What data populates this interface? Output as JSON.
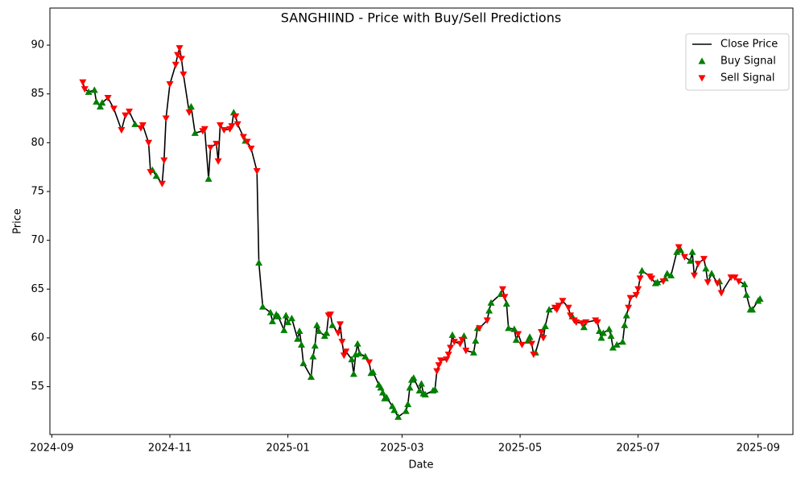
{
  "chart_data": {
    "type": "line",
    "title": "SANGHIIND - Price with Buy/Sell Predictions",
    "x_label": "Date",
    "y_label": "Price",
    "xlim": [
      "2024-08-31",
      "2025-09-19"
    ],
    "xticks": [
      {
        "value": "2024-09-01",
        "label": "2024-09"
      },
      {
        "value": "2024-11-01",
        "label": "2024-11"
      },
      {
        "value": "2025-01-01",
        "label": "2025-01"
      },
      {
        "value": "2025-03-01",
        "label": "2025-03"
      },
      {
        "value": "2025-05-01",
        "label": "2025-05"
      },
      {
        "value": "2025-07-01",
        "label": "2025-07"
      },
      {
        "value": "2025-09-01",
        "label": "2025-09"
      }
    ],
    "ylim": [
      50.1,
      93.8
    ],
    "yticks": [
      55,
      60,
      65,
      70,
      75,
      80,
      85,
      90
    ],
    "grid": false,
    "legend": "upper right",
    "x": [
      "2024-09-17",
      "2024-09-18",
      "2024-09-20",
      "2024-09-23",
      "2024-09-24",
      "2024-09-26",
      "2024-09-27",
      "2024-09-30",
      "2024-10-03",
      "2024-10-07",
      "2024-10-09",
      "2024-10-11",
      "2024-10-14",
      "2024-10-17",
      "2024-10-18",
      "2024-10-21",
      "2024-10-22",
      "2024-10-23",
      "2024-10-25",
      "2024-10-28",
      "2024-10-29",
      "2024-10-30",
      "2024-11-01",
      "2024-11-04",
      "2024-11-05",
      "2024-11-06",
      "2024-11-07",
      "2024-11-08",
      "2024-11-11",
      "2024-11-12",
      "2024-11-14",
      "2024-11-18",
      "2024-11-19",
      "2024-11-21",
      "2024-11-22",
      "2024-11-25",
      "2024-11-26",
      "2024-11-27",
      "2024-11-29",
      "2024-12-02",
      "2024-12-03",
      "2024-12-04",
      "2024-12-05",
      "2024-12-06",
      "2024-12-09",
      "2024-12-10",
      "2024-12-11",
      "2024-12-13",
      "2024-12-16",
      "2024-12-17",
      "2024-12-19",
      "2024-12-23",
      "2024-12-24",
      "2024-12-26",
      "2024-12-27",
      "2024-12-30",
      "2024-12-31",
      "2025-01-01",
      "2025-01-03",
      "2025-01-06",
      "2025-01-07",
      "2025-01-08",
      "2025-01-09",
      "2025-01-13",
      "2025-01-14",
      "2025-01-15",
      "2025-01-16",
      "2025-01-17",
      "2025-01-20",
      "2025-01-21",
      "2025-01-22",
      "2025-01-23",
      "2025-01-24",
      "2025-01-27",
      "2025-01-28",
      "2025-01-29",
      "2025-01-30",
      "2025-01-31",
      "2025-02-03",
      "2025-02-04",
      "2025-02-05",
      "2025-02-06",
      "2025-02-07",
      "2025-02-10",
      "2025-02-12",
      "2025-02-13",
      "2025-02-14",
      "2025-02-17",
      "2025-02-18",
      "2025-02-19",
      "2025-02-20",
      "2025-02-21",
      "2025-02-24",
      "2025-02-25",
      "2025-02-27",
      "2025-03-03",
      "2025-03-04",
      "2025-03-05",
      "2025-03-06",
      "2025-03-07",
      "2025-03-10",
      "2025-03-11",
      "2025-03-12",
      "2025-03-13",
      "2025-03-17",
      "2025-03-18",
      "2025-03-19",
      "2025-03-20",
      "2025-03-21",
      "2025-03-24",
      "2025-03-25",
      "2025-03-26",
      "2025-03-27",
      "2025-03-28",
      "2025-03-31",
      "2025-04-01",
      "2025-04-02",
      "2025-04-03",
      "2025-04-07",
      "2025-04-08",
      "2025-04-09",
      "2025-04-10",
      "2025-04-14",
      "2025-04-15",
      "2025-04-16",
      "2025-04-21",
      "2025-04-22",
      "2025-04-23",
      "2025-04-24",
      "2025-04-25",
      "2025-04-28",
      "2025-04-29",
      "2025-04-30",
      "2025-05-02",
      "2025-05-05",
      "2025-05-06",
      "2025-05-07",
      "2025-05-08",
      "2025-05-09",
      "2025-05-12",
      "2025-05-13",
      "2025-05-14",
      "2025-05-16",
      "2025-05-19",
      "2025-05-20",
      "2025-05-21",
      "2025-05-23",
      "2025-05-26",
      "2025-05-27",
      "2025-05-28",
      "2025-05-29",
      "2025-05-30",
      "2025-06-02",
      "2025-06-03",
      "2025-06-04",
      "2025-06-09",
      "2025-06-10",
      "2025-06-11",
      "2025-06-12",
      "2025-06-13",
      "2025-06-16",
      "2025-06-17",
      "2025-06-18",
      "2025-06-20",
      "2025-06-23",
      "2025-06-24",
      "2025-06-25",
      "2025-06-26",
      "2025-06-27",
      "2025-06-30",
      "2025-07-01",
      "2025-07-02",
      "2025-07-03",
      "2025-07-07",
      "2025-07-08",
      "2025-07-10",
      "2025-07-11",
      "2025-07-14",
      "2025-07-15",
      "2025-07-16",
      "2025-07-18",
      "2025-07-21",
      "2025-07-22",
      "2025-07-23",
      "2025-07-25",
      "2025-07-28",
      "2025-07-29",
      "2025-07-30",
      "2025-08-01",
      "2025-08-04",
      "2025-08-05",
      "2025-08-06",
      "2025-08-08",
      "2025-08-11",
      "2025-08-12",
      "2025-08-13",
      "2025-08-18",
      "2025-08-20",
      "2025-08-22",
      "2025-08-25",
      "2025-08-26",
      "2025-08-28",
      "2025-08-29",
      "2025-09-01",
      "2025-09-02"
    ],
    "series": [
      {
        "name": "Close Price",
        "type": "line",
        "color": "#000000",
        "values": [
          86.2,
          85.5,
          85.2,
          85.4,
          84.2,
          83.7,
          84.1,
          84.6,
          83.5,
          81.3,
          82.8,
          83.2,
          81.9,
          81.5,
          81.8,
          80.0,
          77.0,
          77.2,
          76.6,
          75.8,
          78.2,
          82.5,
          86.0,
          88.0,
          89.0,
          89.7,
          88.6,
          87.0,
          83.1,
          83.7,
          81.0,
          81.2,
          81.4,
          76.3,
          79.5,
          79.9,
          78.1,
          81.8,
          81.3,
          81.4,
          81.7,
          83.1,
          82.7,
          81.9,
          80.6,
          80.2,
          80.1,
          79.4,
          77.1,
          67.7,
          63.2,
          62.6,
          61.7,
          62.4,
          62.2,
          60.8,
          62.3,
          61.6,
          62.0,
          59.9,
          60.7,
          59.3,
          57.4,
          56.0,
          58.1,
          59.2,
          61.3,
          60.7,
          60.2,
          60.5,
          62.3,
          62.4,
          61.3,
          60.5,
          61.4,
          59.6,
          58.2,
          58.6,
          57.8,
          56.3,
          58.3,
          59.4,
          58.4,
          58.1,
          57.5,
          56.4,
          56.5,
          55.2,
          54.9,
          54.4,
          53.8,
          53.9,
          53.0,
          52.6,
          51.9,
          52.5,
          53.2,
          54.9,
          55.7,
          55.9,
          54.6,
          55.3,
          54.3,
          54.2,
          54.6,
          54.7,
          56.6,
          57.2,
          57.7,
          57.8,
          58.3,
          59.0,
          60.3,
          59.6,
          59.4,
          59.8,
          60.2,
          58.7,
          58.5,
          59.7,
          61.0,
          61.0,
          61.8,
          62.8,
          63.6,
          64.5,
          65.0,
          64.2,
          63.5,
          61.0,
          60.9,
          59.8,
          60.4,
          59.3,
          59.7,
          60.1,
          59.4,
          58.3,
          58.5,
          60.6,
          60.0,
          61.2,
          62.9,
          63.1,
          62.9,
          63.3,
          63.8,
          63.1,
          62.3,
          62.2,
          61.8,
          61.6,
          61.5,
          61.1,
          61.6,
          61.8,
          61.6,
          60.7,
          60.0,
          60.5,
          60.9,
          60.2,
          59.0,
          59.3,
          59.6,
          61.3,
          62.3,
          63.1,
          64.1,
          64.4,
          65.0,
          66.1,
          66.9,
          66.3,
          66.1,
          65.6,
          65.7,
          65.8,
          66.1,
          66.6,
          66.4,
          68.8,
          69.3,
          69.0,
          68.3,
          67.9,
          68.8,
          66.4,
          67.6,
          68.1,
          67.1,
          65.7,
          66.6,
          65.6,
          65.8,
          64.6,
          66.2,
          66.2,
          65.8,
          65.5,
          64.4,
          62.9,
          62.9,
          63.8,
          64.0
        ]
      },
      {
        "name": "Buy Signal",
        "type": "scatter",
        "marker": "triangle-up",
        "color": "#008000",
        "values": [
          null,
          null,
          85.2,
          85.4,
          84.2,
          83.7,
          84.1,
          null,
          null,
          null,
          null,
          null,
          81.9,
          null,
          null,
          null,
          null,
          77.2,
          76.6,
          null,
          null,
          null,
          null,
          null,
          null,
          null,
          null,
          null,
          null,
          83.7,
          81.0,
          null,
          null,
          76.3,
          null,
          null,
          null,
          null,
          null,
          null,
          null,
          83.1,
          null,
          null,
          null,
          80.2,
          null,
          null,
          null,
          67.7,
          63.2,
          62.6,
          61.7,
          62.4,
          62.2,
          60.8,
          62.3,
          61.6,
          62.0,
          59.9,
          60.7,
          59.3,
          57.4,
          56.0,
          58.1,
          59.2,
          61.3,
          60.7,
          60.2,
          60.5,
          null,
          null,
          61.3,
          null,
          null,
          null,
          null,
          null,
          57.8,
          56.3,
          58.3,
          59.4,
          58.4,
          58.1,
          null,
          56.4,
          56.5,
          55.2,
          54.9,
          54.4,
          53.8,
          53.9,
          53.0,
          52.6,
          51.9,
          52.5,
          53.2,
          54.9,
          55.7,
          55.9,
          54.6,
          55.3,
          54.3,
          54.2,
          54.6,
          54.7,
          null,
          null,
          null,
          null,
          null,
          null,
          60.3,
          null,
          null,
          null,
          60.2,
          null,
          58.5,
          59.7,
          61.0,
          null,
          null,
          62.8,
          63.6,
          64.5,
          null,
          null,
          63.5,
          61.0,
          60.9,
          59.8,
          null,
          null,
          59.7,
          60.1,
          null,
          null,
          58.5,
          null,
          null,
          61.2,
          62.9,
          null,
          null,
          null,
          null,
          null,
          null,
          62.2,
          null,
          null,
          null,
          61.1,
          null,
          null,
          null,
          60.7,
          60.0,
          60.5,
          60.9,
          60.2,
          59.0,
          59.3,
          59.6,
          61.3,
          62.3,
          null,
          null,
          null,
          null,
          null,
          66.9,
          null,
          null,
          65.6,
          65.7,
          null,
          66.1,
          66.6,
          66.4,
          68.8,
          null,
          69.0,
          null,
          67.9,
          68.8,
          null,
          null,
          null,
          67.1,
          null,
          66.6,
          null,
          65.8,
          null,
          null,
          null,
          null,
          65.5,
          64.4,
          62.9,
          62.9,
          63.8,
          64.0
        ]
      },
      {
        "name": "Sell Signal",
        "type": "scatter",
        "marker": "triangle-down",
        "color": "#ff0000",
        "values": [
          86.2,
          85.5,
          null,
          null,
          null,
          null,
          null,
          84.6,
          83.5,
          81.3,
          82.8,
          83.2,
          null,
          81.5,
          81.8,
          80.0,
          77.0,
          null,
          null,
          75.8,
          78.2,
          82.5,
          86.0,
          88.0,
          89.0,
          89.7,
          88.6,
          87.0,
          83.1,
          null,
          null,
          81.2,
          81.4,
          null,
          79.5,
          79.9,
          78.1,
          81.8,
          81.3,
          81.4,
          81.7,
          null,
          82.7,
          81.9,
          80.6,
          null,
          80.1,
          79.4,
          77.1,
          null,
          null,
          null,
          null,
          null,
          null,
          null,
          null,
          null,
          null,
          null,
          null,
          null,
          null,
          null,
          null,
          null,
          null,
          null,
          null,
          null,
          62.3,
          62.4,
          null,
          60.5,
          61.4,
          59.6,
          58.2,
          58.6,
          null,
          null,
          null,
          null,
          null,
          null,
          57.5,
          null,
          null,
          null,
          null,
          null,
          null,
          null,
          null,
          null,
          null,
          null,
          null,
          null,
          null,
          null,
          null,
          null,
          null,
          null,
          null,
          null,
          56.6,
          57.2,
          57.7,
          57.8,
          58.3,
          59.0,
          null,
          59.6,
          59.4,
          59.8,
          null,
          58.7,
          null,
          null,
          null,
          61.0,
          61.8,
          null,
          null,
          null,
          65.0,
          64.2,
          null,
          null,
          null,
          null,
          60.4,
          59.3,
          null,
          null,
          59.4,
          58.3,
          null,
          60.6,
          60.0,
          null,
          null,
          63.1,
          62.9,
          63.3,
          63.8,
          63.1,
          62.3,
          null,
          61.8,
          61.6,
          61.5,
          null,
          61.6,
          61.8,
          61.6,
          null,
          null,
          null,
          null,
          null,
          null,
          null,
          null,
          null,
          null,
          63.1,
          64.1,
          64.4,
          65.0,
          66.1,
          null,
          66.3,
          66.1,
          null,
          null,
          65.8,
          null,
          null,
          null,
          null,
          69.3,
          null,
          68.3,
          null,
          null,
          66.4,
          67.6,
          68.1,
          null,
          65.7,
          null,
          65.6,
          null,
          64.6,
          66.2,
          66.2,
          65.8,
          null,
          null,
          null,
          null,
          null,
          null
        ]
      }
    ]
  }
}
